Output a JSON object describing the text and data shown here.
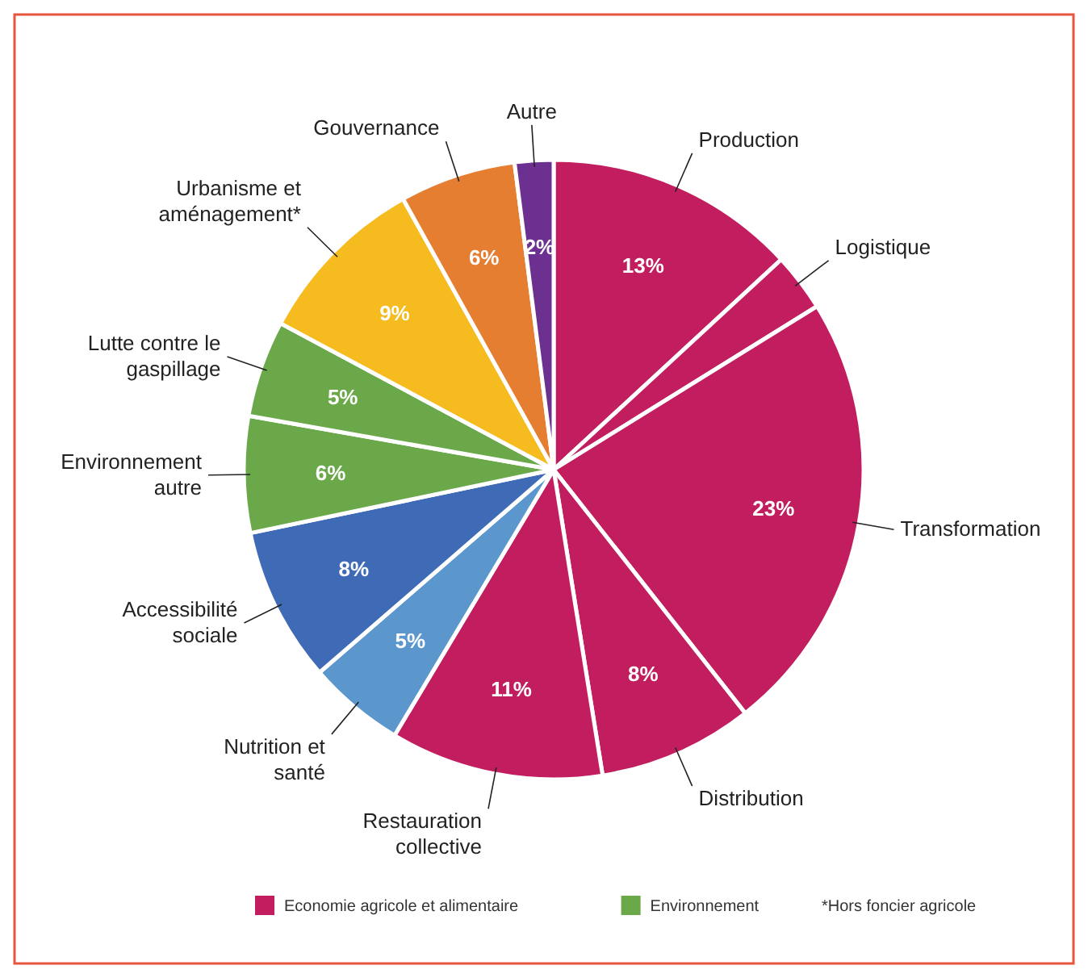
{
  "chart_data": {
    "type": "pie",
    "categories": [
      "Production",
      "Logistique",
      "Transformation",
      "Distribution",
      "Restauration collective",
      "Nutrition et santé",
      "Accessibilité sociale",
      "Environnement autre",
      "Lutte contre le gaspillage",
      "Urbanisme et aménagement*",
      "Gouvernance",
      "Autre"
    ],
    "values": [
      13,
      3,
      23,
      8,
      11,
      5,
      8,
      6,
      5,
      9,
      6,
      2
    ],
    "colors": [
      "#c11d5f",
      "#c11d5f",
      "#c11d5f",
      "#c11d5f",
      "#c11d5f",
      "#5b96cc",
      "#3f6bb6",
      "#6aa84a",
      "#6aa84a",
      "#f5bb1f",
      "#e67e32",
      "#6c3190"
    ],
    "value_labels": [
      "13%",
      null,
      "23%",
      "8%",
      "11%",
      "5%",
      "8%",
      "6%",
      "5%",
      "9%",
      "6%",
      "2%"
    ],
    "annotations": [
      "Economie agricole et alimentaire",
      "Environnement",
      "*Hors foncier agricole"
    ]
  }
}
